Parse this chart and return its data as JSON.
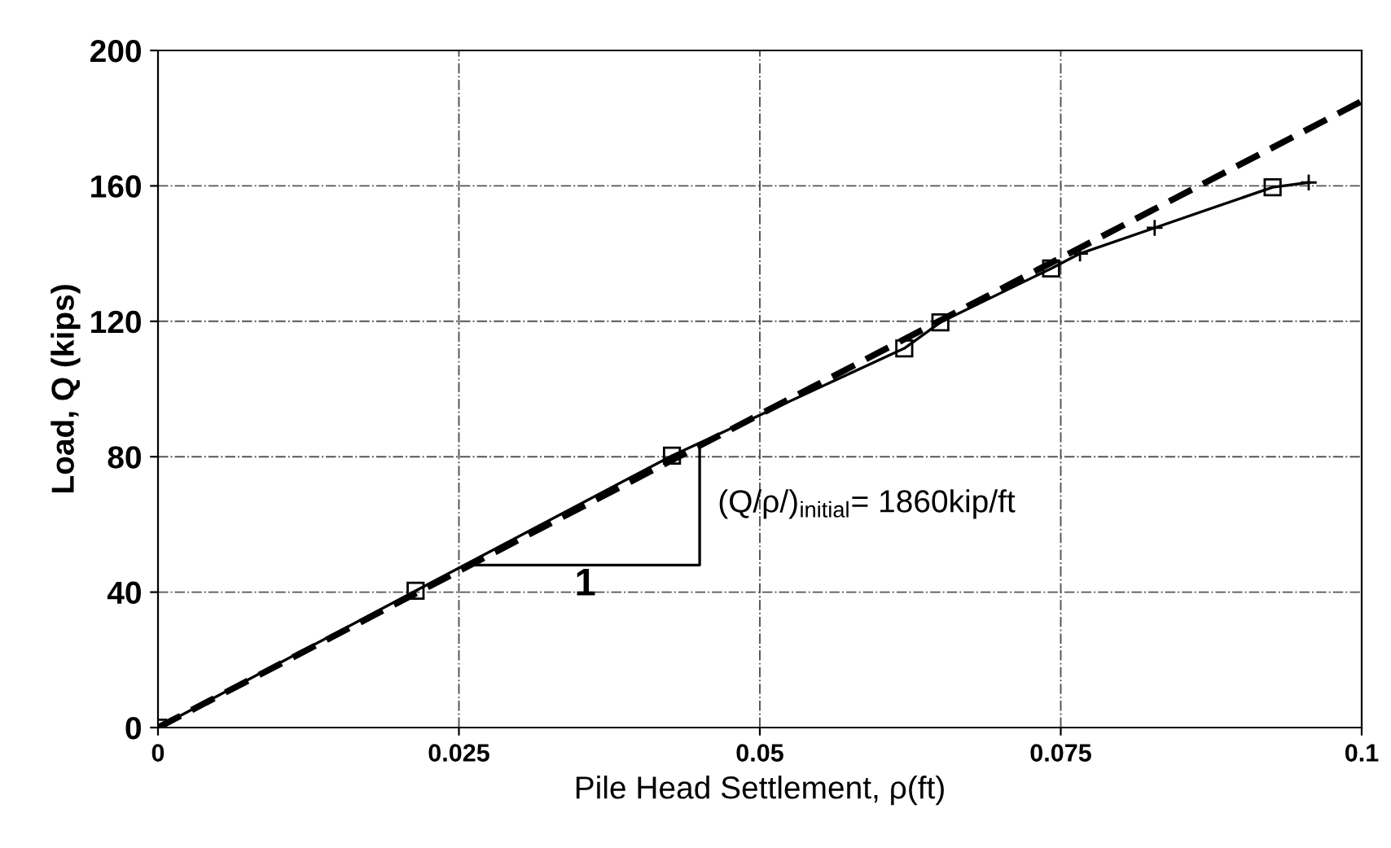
{
  "chart_data": {
    "type": "line",
    "xlabel": "Pile Head Settlement, ρ(ft)",
    "ylabel": "Load, Q (kips)",
    "xlim": [
      0,
      0.1
    ],
    "xticks": [
      0,
      0.025,
      0.05,
      0.075,
      0.1
    ],
    "ylim": [
      0,
      200
    ],
    "yticks": [
      0,
      40,
      80,
      120,
      160,
      200
    ],
    "grid": true,
    "series": [
      {
        "color": "#000000",
        "marker": "none",
        "line_style": "solid",
        "x": [
          0,
          0.0214,
          0.0427,
          0.062,
          0.065,
          0.0742,
          0.0766,
          0.0828,
          0.0926,
          0.0956
        ],
        "values": [
          0,
          40.4,
          80.3,
          112,
          119.7,
          135.6,
          140,
          147.6,
          159.6,
          161
        ]
      },
      {
        "type": "scatter",
        "color": "#000000",
        "marker": "square",
        "x": [
          0,
          0.0214,
          0.0427,
          0.062,
          0.065,
          0.0742,
          0.0926
        ],
        "values": [
          0,
          40.4,
          80.3,
          112,
          119.7,
          135.6,
          159.6
        ]
      },
      {
        "type": "scatter",
        "color": "#000000",
        "marker": "cross",
        "x": [
          0.0766,
          0.0828,
          0.0956
        ],
        "values": [
          140,
          147.6,
          161
        ]
      },
      {
        "color": "#000000",
        "marker": "none",
        "line_style": "dashed",
        "x": [
          0,
          0.1
        ],
        "values": [
          0,
          185
        ]
      },
      {
        "color": "#000000",
        "marker": "none",
        "line_style": "solid",
        "x": [
          0.026,
          0.045,
          0.045
        ],
        "values": [
          48,
          48,
          84
        ]
      }
    ],
    "annotations": [
      "1",
      "(Q/ρ/)$_{initial}$= 1860kip/ft"
    ]
  }
}
